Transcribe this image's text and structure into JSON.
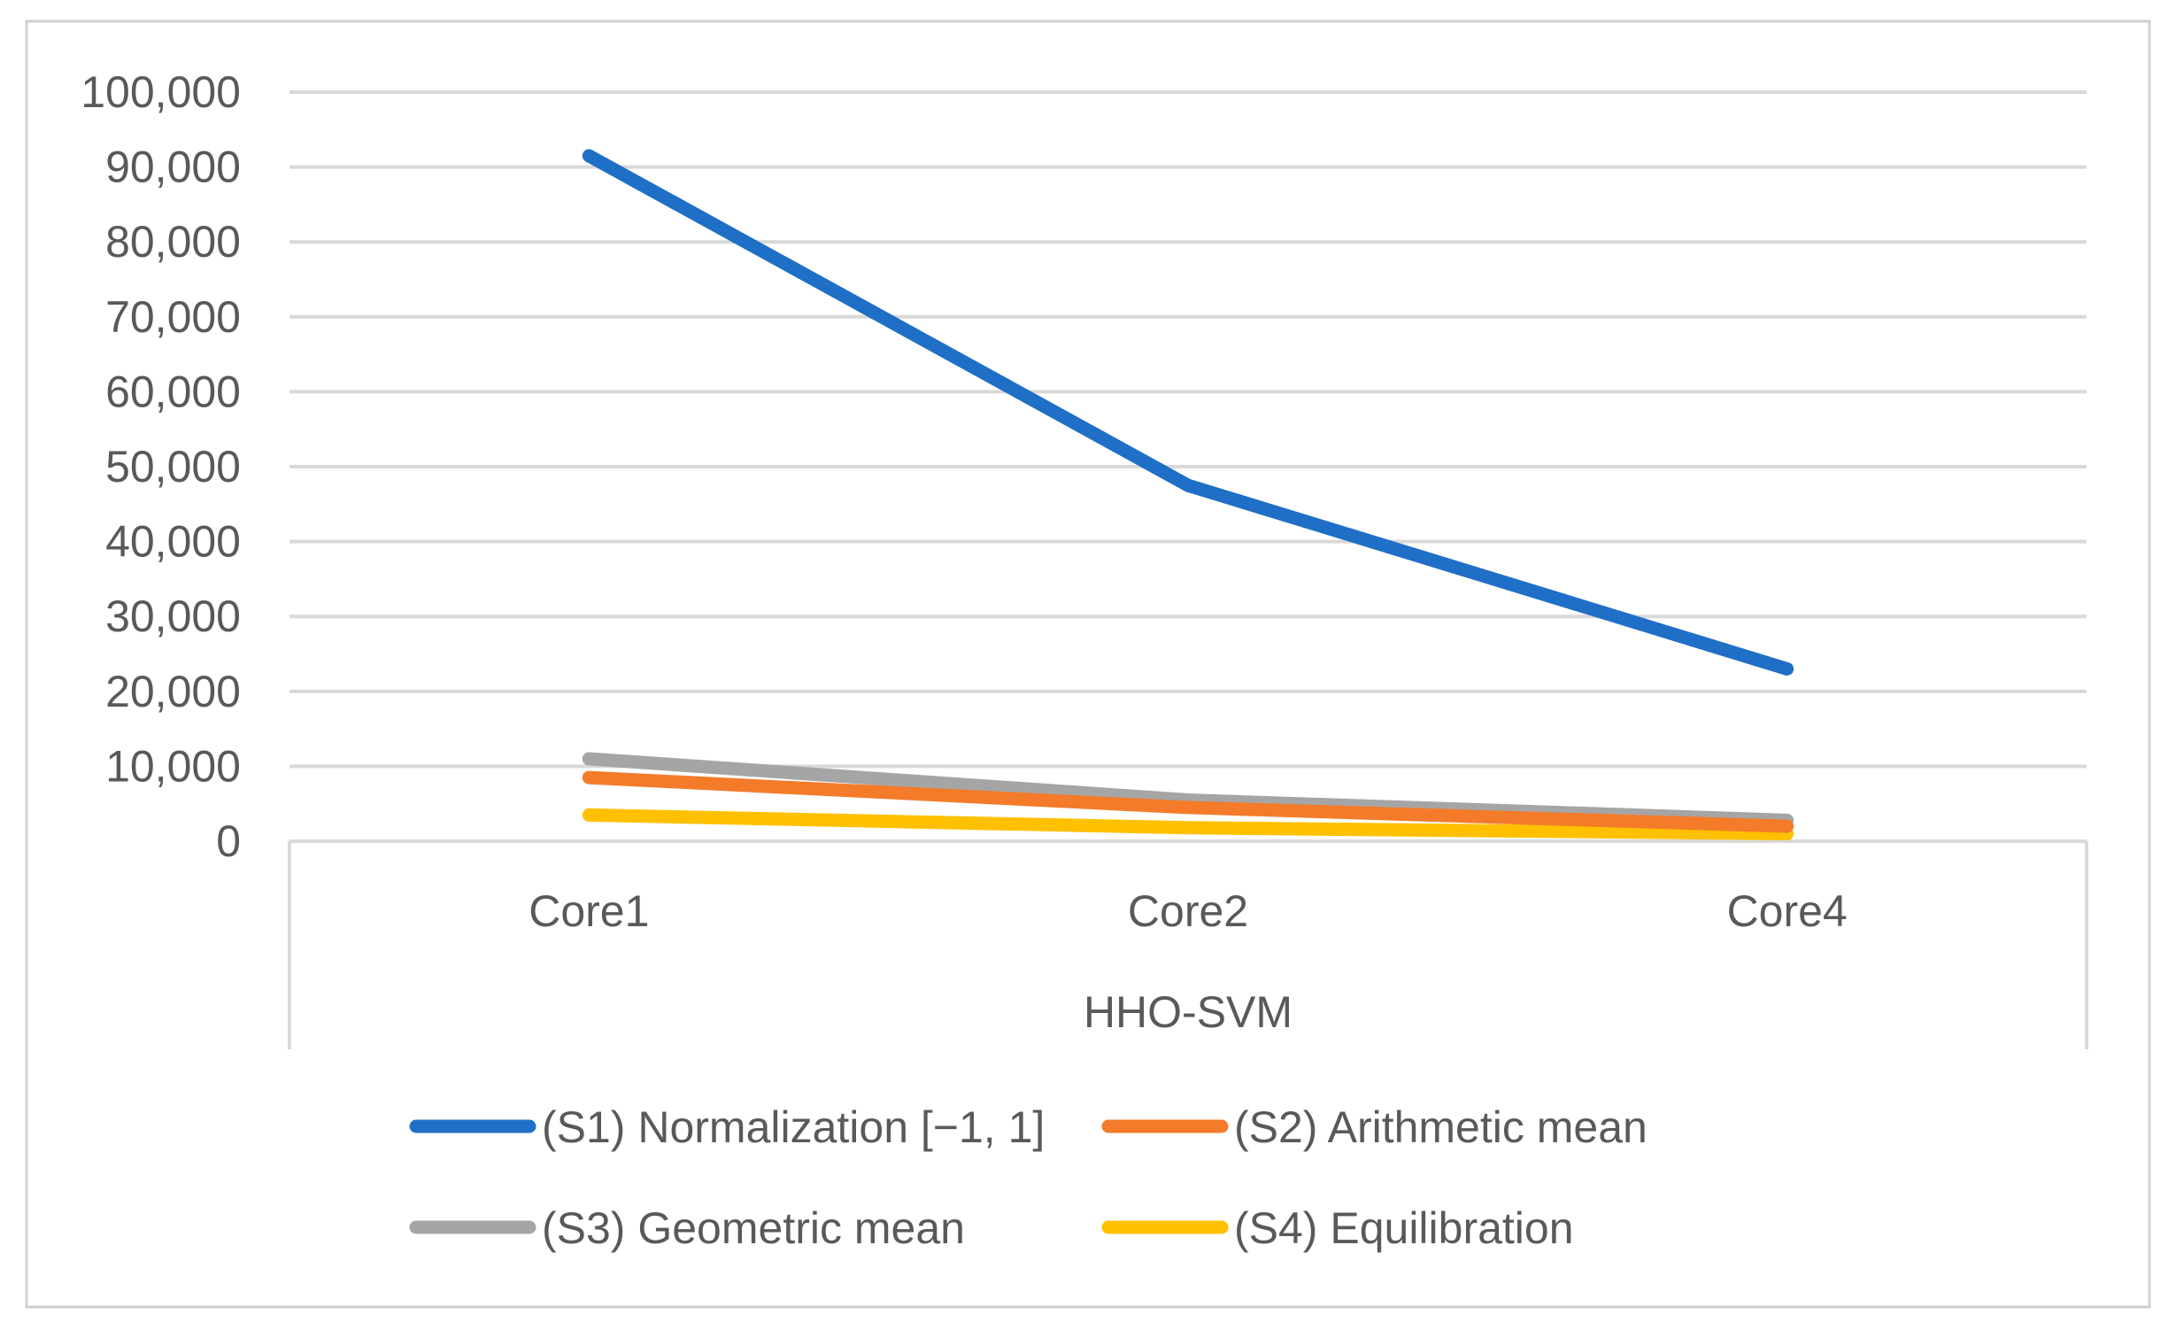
{
  "chart_data": {
    "type": "line",
    "title": "",
    "xlabel": "HHO-SVM",
    "ylabel": "",
    "categories": [
      "Core1",
      "Core2",
      "Core4"
    ],
    "ylim": [
      0,
      100000
    ],
    "ytick_step": 10000,
    "ytick_labels": [
      "0",
      "10,000",
      "20,000",
      "30,000",
      "40,000",
      "50,000",
      "60,000",
      "70,000",
      "80,000",
      "90,000",
      "100,000"
    ],
    "grid": true,
    "legend_position": "bottom",
    "series": [
      {
        "name": "(S1) Normalization [−1, 1]",
        "values": [
          91500,
          47500,
          23000
        ],
        "color": "#1f6fc6"
      },
      {
        "name": "(S2) Arithmetic mean",
        "values": [
          8500,
          4500,
          2000
        ],
        "color": "#f47b2a"
      },
      {
        "name": "(S3) Geometric mean",
        "values": [
          11000,
          5500,
          2800
        ],
        "color": "#a5a5a5"
      },
      {
        "name": "(S4) Equilibration",
        "values": [
          3500,
          1800,
          1000
        ],
        "color": "#ffc000"
      }
    ]
  }
}
